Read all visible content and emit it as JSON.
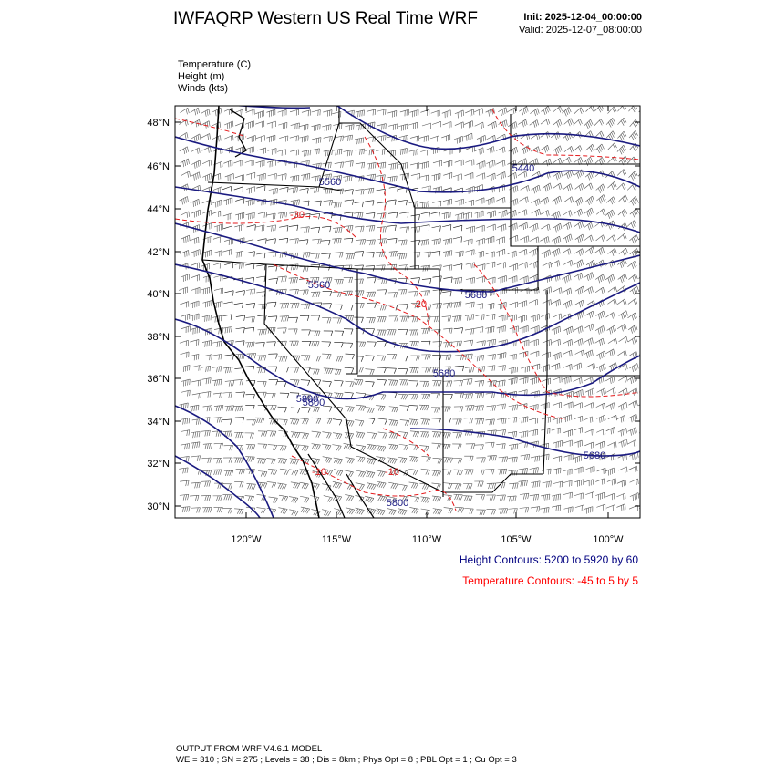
{
  "header": {
    "title": "IWFAQRP Western US Real Time WRF",
    "init": "Init: 2025-12-04_00:00:00",
    "valid": "Valid: 2025-12-07_08:00:00"
  },
  "legend": {
    "temperature": "Temperature   (C)",
    "height": "Height   (m)",
    "winds": "Winds   (kts)"
  },
  "axes": {
    "lat_labels": [
      "48°N",
      "46°N",
      "44°N",
      "42°N",
      "40°N",
      "38°N",
      "36°N",
      "34°N",
      "32°N",
      "30°N"
    ],
    "lon_labels": [
      "120°W",
      "115°W",
      "110°W",
      "105°W",
      "100°W"
    ]
  },
  "height_contour_labels": [
    "5560",
    "5560",
    "5440",
    "5680",
    "5680",
    "5800",
    "5800",
    "5680",
    "5800"
  ],
  "temperature_contour_labels": [
    "-30",
    "-20",
    "-10",
    "-10"
  ],
  "contour_info": {
    "height": "Height Contours: 5200 to 5920 by 60",
    "temperature": "Temperature Contours: -45 to 5 by 5"
  },
  "colors": {
    "height_contour": "#1a1a80",
    "temperature_contour": "#e41a1c",
    "height_text": "#000080",
    "temperature_text": "#ff0000"
  },
  "footer": {
    "line1": "OUTPUT FROM WRF V4.6.1 MODEL",
    "line2": "WE = 310 ; SN = 275 ; Levels = 38 ; Dis = 8km ; Phys Opt = 8 ; PBL Opt = 1 ; Cu Opt = 3"
  }
}
